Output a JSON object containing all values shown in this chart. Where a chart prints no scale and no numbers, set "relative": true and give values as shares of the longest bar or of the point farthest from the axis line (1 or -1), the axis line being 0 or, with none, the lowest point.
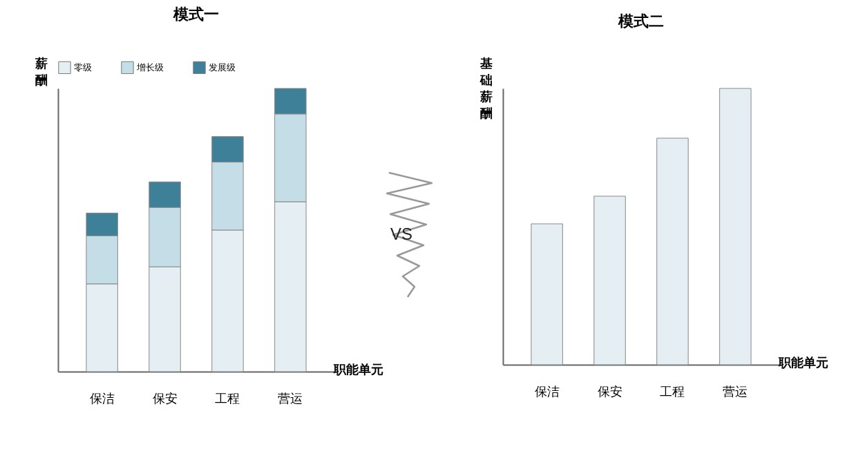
{
  "chart_data": [
    {
      "type": "bar",
      "title": "模式一",
      "xlabel": "职能单元",
      "ylabel": "薪酬",
      "stacked": true,
      "relative": true,
      "legend": "top left",
      "grid": false,
      "annotations": [
        "VS"
      ],
      "categories": [
        "保洁",
        "保安",
        "工程",
        "营运"
      ],
      "series": [
        {
          "name": "零级",
          "color": "#e4eef3",
          "values": [
            0.31,
            0.37,
            0.5,
            0.6
          ]
        },
        {
          "name": "增长级",
          "color": "#c5dde6",
          "values": [
            0.17,
            0.21,
            0.24,
            0.31
          ]
        },
        {
          "name": "发展级",
          "color": "#3f8099",
          "values": [
            0.08,
            0.09,
            0.09,
            0.09
          ]
        }
      ]
    },
    {
      "type": "bar",
      "title": "模式二",
      "xlabel": "职能单元",
      "ylabel": "基础薪酬",
      "relative": true,
      "grid": false,
      "categories": [
        "保洁",
        "保安",
        "工程",
        "营运"
      ],
      "series": [
        {
          "color": "#e4eef3",
          "values": [
            0.51,
            0.61,
            0.82,
            1
          ]
        }
      ]
    }
  ]
}
